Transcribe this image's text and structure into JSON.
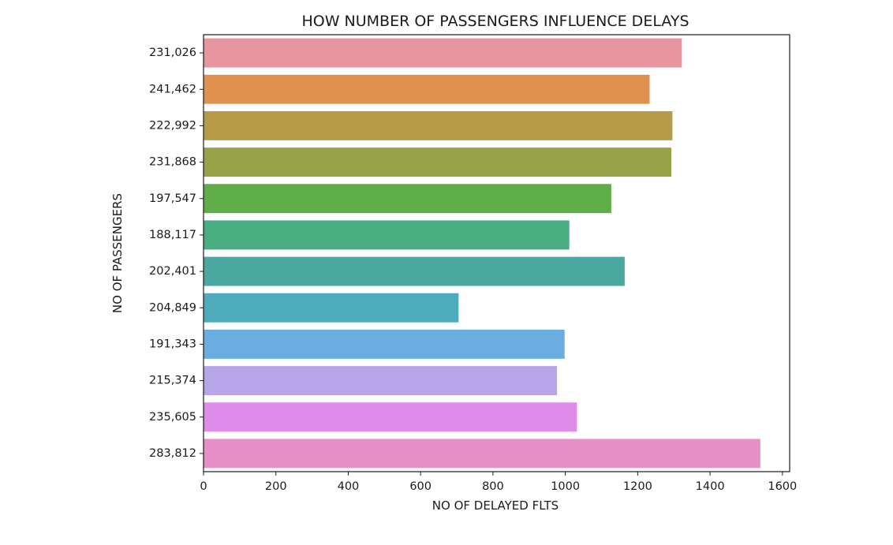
{
  "chart_data": {
    "type": "bar",
    "orientation": "horizontal",
    "title": "HOW NUMBER OF PASSENGERS INFLUENCE DELAYS",
    "xlabel": "NO OF DELAYED FLTS",
    "ylabel": "NO OF PASSENGERS",
    "xlim": [
      0,
      1620
    ],
    "x_ticks": [
      "0",
      "200",
      "400",
      "600",
      "800",
      "1000",
      "1200",
      "1400",
      "1600"
    ],
    "grid": false,
    "categories": [
      "231,026",
      "241,462",
      "222,992",
      "231,868",
      "197,547",
      "188,117",
      "202,401",
      "204,849",
      "191,343",
      "215,374",
      "235,605",
      "283,812"
    ],
    "values": [
      1322,
      1233,
      1296,
      1293,
      1127,
      1011,
      1164,
      705,
      998,
      977,
      1032,
      1539
    ],
    "colors": [
      "#e8959f",
      "#e0914f",
      "#b69c48",
      "#98a347",
      "#5fad47",
      "#48ad80",
      "#4aa8a1",
      "#4dabbc",
      "#6aade0",
      "#b7a5ea",
      "#de8bea",
      "#e68fc8"
    ]
  }
}
